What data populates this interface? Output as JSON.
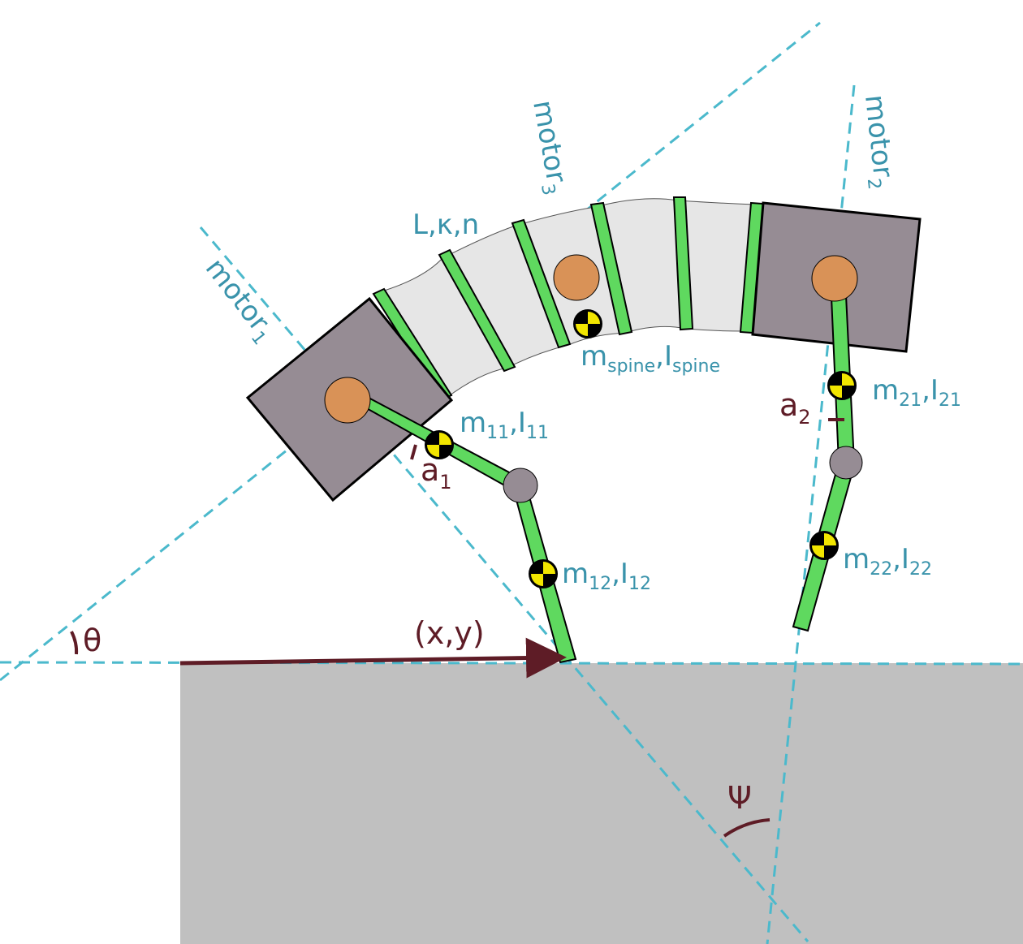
{
  "diagram": {
    "labels": {
      "motor1": "motor",
      "motor1_sub": "1",
      "motor2": "motor",
      "motor2_sub": "2",
      "motor3": "motor",
      "motor3_sub": "3",
      "spine_params": "L,κ,n",
      "m_spine": "m",
      "m_spine_sub": "spine",
      "comma_spine": ",I",
      "I_spine_sub": "spine",
      "m11": "m",
      "m11_sub": "11",
      "I11": ",I",
      "I11_sub": "11",
      "m12": "m",
      "m12_sub": "12",
      "I12": ",I",
      "I12_sub": "12",
      "m21": "m",
      "m21_sub": "21",
      "I21": ",I",
      "I21_sub": "21",
      "m22": "m",
      "m22_sub": "22",
      "I22": ",I",
      "I22_sub": "22",
      "a1": "a",
      "a1_sub": "1",
      "a2": "a",
      "a2_sub": "2",
      "theta": "θ",
      "position": "(x,y)",
      "psi": "Ψ"
    },
    "colors": {
      "guide_line": "#4bb9cc",
      "label_teal": "#3a93ab",
      "label_maroon": "#5e1c26",
      "leg_green": "#5fd95f",
      "motor_body": "#968c94",
      "joint_orange": "#d99257",
      "knee_gray": "#968c94",
      "spine_fill": "#e6e6e6",
      "ground": "#c0c0c0"
    },
    "icons": {
      "center_of_mass": "center-of-mass-icon"
    }
  }
}
